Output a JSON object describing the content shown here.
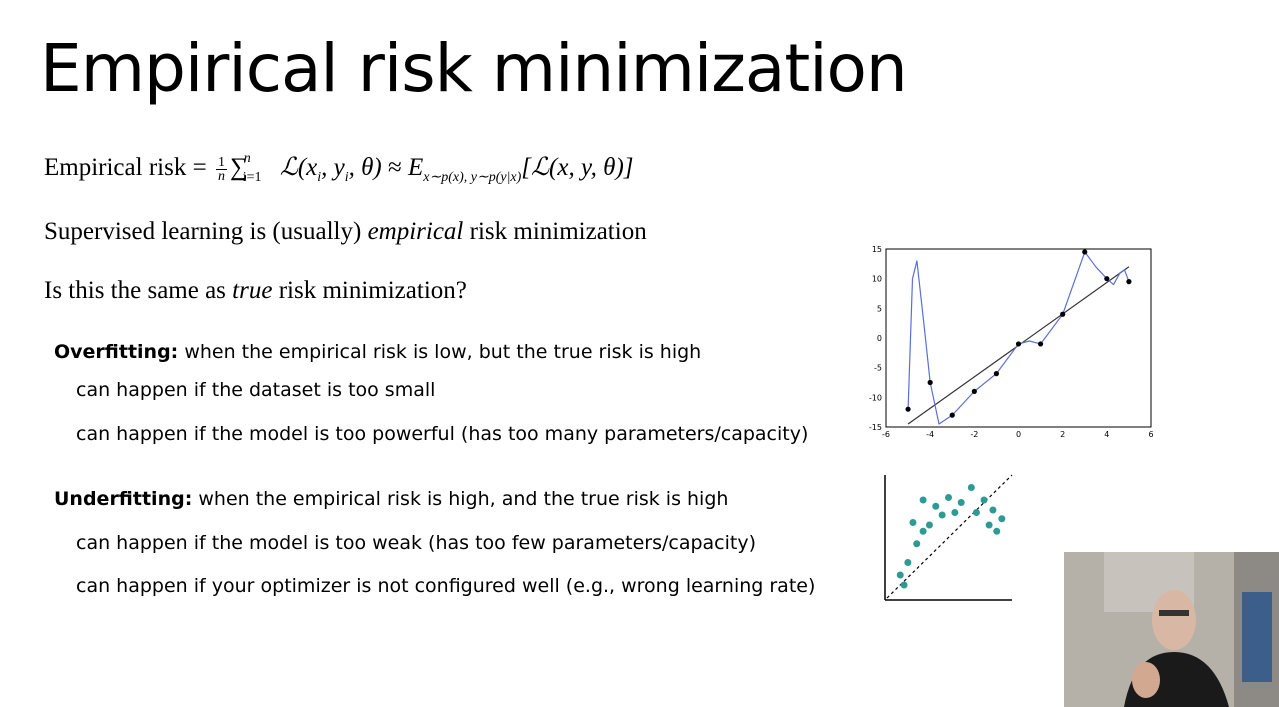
{
  "slide": {
    "title": "Empirical risk minimization",
    "equation": {
      "lhs": "Empirical risk",
      "eq": "=",
      "frac_num": "1",
      "frac_den": "n",
      "sum": "∑",
      "sum_sub": "i=1",
      "sum_sup": "n",
      "term": "ℒ(x",
      "term_sub1": "i",
      "term_mid": ", y",
      "term_sub2": "i",
      "term_end": ", θ)",
      "approx": "≈",
      "expect": "E",
      "expect_sub": "x∼p(x), y∼p(y|x)",
      "bracket_term": "[ℒ(x, y, θ)]"
    },
    "line1_pre": "Supervised learning is (usually)",
    "line1_em": "empirical",
    "line1_post": "risk minimization",
    "line2_pre": "Is this the same as",
    "line2_em": "true",
    "line2_post": "risk minimization?",
    "overfitting": {
      "label": "Overfitting:",
      "text": "when the empirical risk is low, but the true risk is high",
      "reasons": [
        "can happen if the dataset is too small",
        "can happen if the model is too powerful (has too many parameters/capacity)"
      ]
    },
    "underfitting": {
      "label": "Underfitting:",
      "text": "when the empirical risk is high, and the true risk is high",
      "reasons": [
        "can happen if the model is too weak (has too few parameters/capacity)",
        "can happen if your optimizer is not configured well (e.g., wrong learning rate)"
      ]
    }
  },
  "chart_data": [
    {
      "type": "scatter",
      "description_id": "overfit-plot",
      "xlim": [
        -6,
        6
      ],
      "ylim": [
        -15,
        15
      ],
      "x_ticks": [
        "-6",
        "-4",
        "-2",
        "0",
        "2",
        "4",
        "6"
      ],
      "y_ticks": [
        "15",
        "10",
        "5",
        "0",
        "-5",
        "-10",
        "-15"
      ],
      "points_x": [
        -5,
        -4,
        -3,
        -2,
        -1,
        0,
        1,
        2,
        3,
        4,
        5
      ],
      "points_y": [
        -12,
        -7.5,
        -13,
        -9,
        -6,
        -1,
        -1,
        4,
        14.5,
        10,
        9.5
      ],
      "fit_line": {
        "x": [
          -5,
          5
        ],
        "y": [
          -14.5,
          12
        ]
      },
      "colors": {
        "points": "#000000",
        "curve": "#5b6fd6",
        "line": "#333333"
      }
    },
    {
      "type": "scatter",
      "description_id": "underfit-plot",
      "points": [
        [
          0.12,
          0.2
        ],
        [
          0.18,
          0.3
        ],
        [
          0.25,
          0.45
        ],
        [
          0.3,
          0.55
        ],
        [
          0.22,
          0.62
        ],
        [
          0.35,
          0.6
        ],
        [
          0.4,
          0.75
        ],
        [
          0.45,
          0.68
        ],
        [
          0.5,
          0.82
        ],
        [
          0.55,
          0.7
        ],
        [
          0.6,
          0.78
        ],
        [
          0.68,
          0.9
        ],
        [
          0.72,
          0.7
        ],
        [
          0.78,
          0.8
        ],
        [
          0.82,
          0.6
        ],
        [
          0.85,
          0.72
        ],
        [
          0.88,
          0.55
        ],
        [
          0.92,
          0.65
        ],
        [
          0.3,
          0.8
        ],
        [
          0.15,
          0.12
        ]
      ],
      "colors": {
        "points": "#2e9a94",
        "line": "#000000"
      }
    }
  ]
}
